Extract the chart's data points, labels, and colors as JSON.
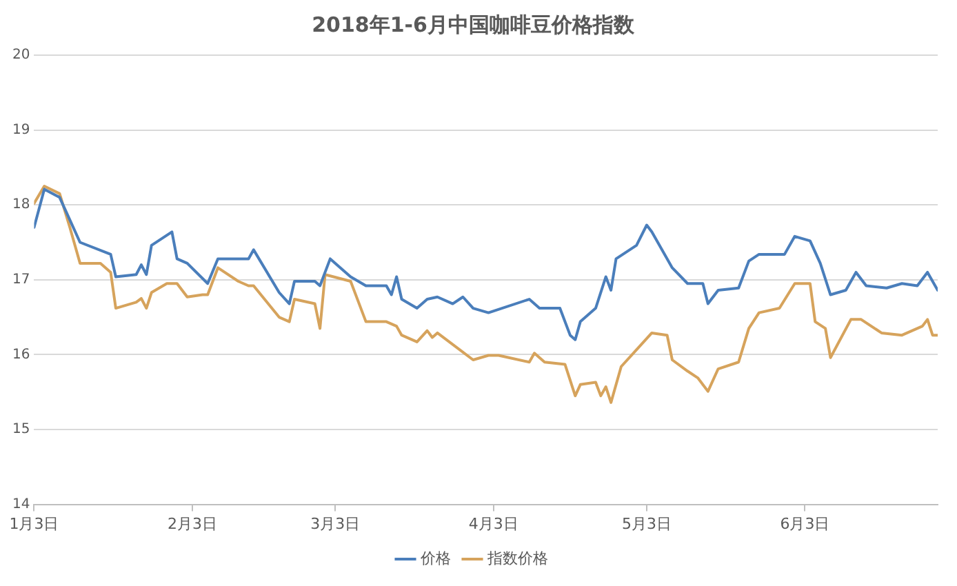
{
  "chart_data": {
    "type": "line",
    "title": "2018年1-6月中国咖啡豆价格指数",
    "xlim": [
      "2018-01-03",
      "2018-06-29"
    ],
    "xticks": [
      {
        "value": "2018-01-03",
        "label": "1月3日"
      },
      {
        "value": "2018-02-03",
        "label": "2月3日"
      },
      {
        "value": "2018-03-03",
        "label": "3月3日"
      },
      {
        "value": "2018-04-03",
        "label": "4月3日"
      },
      {
        "value": "2018-05-03",
        "label": "5月3日"
      },
      {
        "value": "2018-06-03",
        "label": "6月3日"
      }
    ],
    "ylim": [
      14,
      20
    ],
    "yticks": [
      14,
      15,
      16,
      17,
      18,
      19,
      20
    ],
    "grid": "y",
    "legend": "bottom",
    "marker": "none",
    "line_style": "solid",
    "series": [
      {
        "name": "价格",
        "color": "#4a7ebb",
        "x": [
          "2018-01-03",
          "2018-01-05",
          "2018-01-08",
          "2018-01-10",
          "2018-01-12",
          "2018-01-18",
          "2018-01-19",
          "2018-01-23",
          "2018-01-24",
          "2018-01-25",
          "2018-01-26",
          "2018-01-30",
          "2018-01-31",
          "2018-02-02",
          "2018-02-06",
          "2018-02-08",
          "2018-02-12",
          "2018-02-14",
          "2018-02-15",
          "2018-02-20",
          "2018-02-22",
          "2018-02-23",
          "2018-02-27",
          "2018-02-28",
          "2018-03-02",
          "2018-03-06",
          "2018-03-09",
          "2018-03-13",
          "2018-03-14",
          "2018-03-15",
          "2018-03-16",
          "2018-03-19",
          "2018-03-21",
          "2018-03-23",
          "2018-03-26",
          "2018-03-28",
          "2018-03-30",
          "2018-04-02",
          "2018-04-10",
          "2018-04-12",
          "2018-04-16",
          "2018-04-18",
          "2018-04-19",
          "2018-04-20",
          "2018-04-23",
          "2018-04-25",
          "2018-04-26",
          "2018-04-27",
          "2018-05-01",
          "2018-05-03",
          "2018-05-04",
          "2018-05-08",
          "2018-05-11",
          "2018-05-14",
          "2018-05-15",
          "2018-05-17",
          "2018-05-21",
          "2018-05-23",
          "2018-05-25",
          "2018-05-30",
          "2018-06-01",
          "2018-06-04",
          "2018-06-06",
          "2018-06-08",
          "2018-06-11",
          "2018-06-13",
          "2018-06-15",
          "2018-06-19",
          "2018-06-22",
          "2018-06-25",
          "2018-06-27",
          "2018-06-29"
        ],
        "values": [
          17.7,
          18.21,
          18.1,
          17.8,
          17.5,
          17.34,
          17.04,
          17.07,
          17.2,
          17.07,
          17.46,
          17.64,
          17.28,
          17.22,
          16.95,
          17.28,
          17.28,
          17.28,
          17.4,
          16.83,
          16.68,
          16.98,
          16.98,
          16.92,
          17.28,
          17.04,
          16.92,
          16.92,
          16.8,
          17.04,
          16.74,
          16.62,
          16.74,
          16.77,
          16.68,
          16.77,
          16.62,
          16.56,
          16.74,
          16.62,
          16.62,
          16.26,
          16.2,
          16.44,
          16.62,
          17.04,
          16.86,
          17.28,
          17.46,
          17.73,
          17.64,
          17.16,
          16.95,
          16.95,
          16.68,
          16.86,
          16.89,
          17.25,
          17.34,
          17.34,
          17.58,
          17.52,
          17.22,
          16.8,
          16.86,
          17.1,
          16.92,
          16.89,
          16.95,
          16.92,
          17.1,
          16.86
        ]
      },
      {
        "name": "指数价格",
        "color": "#d6a35c",
        "x": [
          "2018-01-03",
          "2018-01-05",
          "2018-01-08",
          "2018-01-10",
          "2018-01-12",
          "2018-01-16",
          "2018-01-18",
          "2018-01-19",
          "2018-01-23",
          "2018-01-24",
          "2018-01-25",
          "2018-01-26",
          "2018-01-29",
          "2018-01-31",
          "2018-02-02",
          "2018-02-05",
          "2018-02-06",
          "2018-02-08",
          "2018-02-12",
          "2018-02-14",
          "2018-02-15",
          "2018-02-20",
          "2018-02-22",
          "2018-02-23",
          "2018-02-27",
          "2018-02-28",
          "2018-03-01",
          "2018-03-06",
          "2018-03-09",
          "2018-03-13",
          "2018-03-15",
          "2018-03-16",
          "2018-03-19",
          "2018-03-21",
          "2018-03-22",
          "2018-03-23",
          "2018-03-30",
          "2018-04-02",
          "2018-04-04",
          "2018-04-06",
          "2018-04-10",
          "2018-04-11",
          "2018-04-13",
          "2018-04-17",
          "2018-04-19",
          "2018-04-20",
          "2018-04-23",
          "2018-04-24",
          "2018-04-25",
          "2018-04-26",
          "2018-04-28",
          "2018-05-04",
          "2018-05-07",
          "2018-05-08",
          "2018-05-11",
          "2018-05-13",
          "2018-05-15",
          "2018-05-17",
          "2018-05-21",
          "2018-05-23",
          "2018-05-25",
          "2018-05-29",
          "2018-06-01",
          "2018-06-04",
          "2018-06-05",
          "2018-06-07",
          "2018-06-08",
          "2018-06-12",
          "2018-06-14",
          "2018-06-18",
          "2018-06-22",
          "2018-06-26",
          "2018-06-27",
          "2018-06-28",
          "2018-06-29"
        ],
        "values": [
          18.02,
          18.25,
          18.15,
          17.7,
          17.22,
          17.22,
          17.1,
          16.62,
          16.7,
          16.75,
          16.62,
          16.83,
          16.95,
          16.95,
          16.77,
          16.8,
          16.8,
          17.16,
          16.98,
          16.92,
          16.92,
          16.5,
          16.44,
          16.74,
          16.68,
          16.35,
          17.07,
          16.98,
          16.44,
          16.44,
          16.38,
          16.26,
          16.17,
          16.32,
          16.23,
          16.29,
          15.93,
          15.99,
          15.99,
          15.96,
          15.9,
          16.02,
          15.9,
          15.87,
          15.45,
          15.6,
          15.63,
          15.45,
          15.57,
          15.36,
          15.84,
          16.29,
          16.26,
          15.93,
          15.78,
          15.69,
          15.51,
          15.81,
          15.9,
          16.35,
          16.56,
          16.62,
          16.95,
          16.95,
          16.44,
          16.35,
          15.96,
          16.47,
          16.47,
          16.29,
          16.26,
          16.38,
          16.47,
          16.26,
          16.26
        ]
      }
    ]
  }
}
